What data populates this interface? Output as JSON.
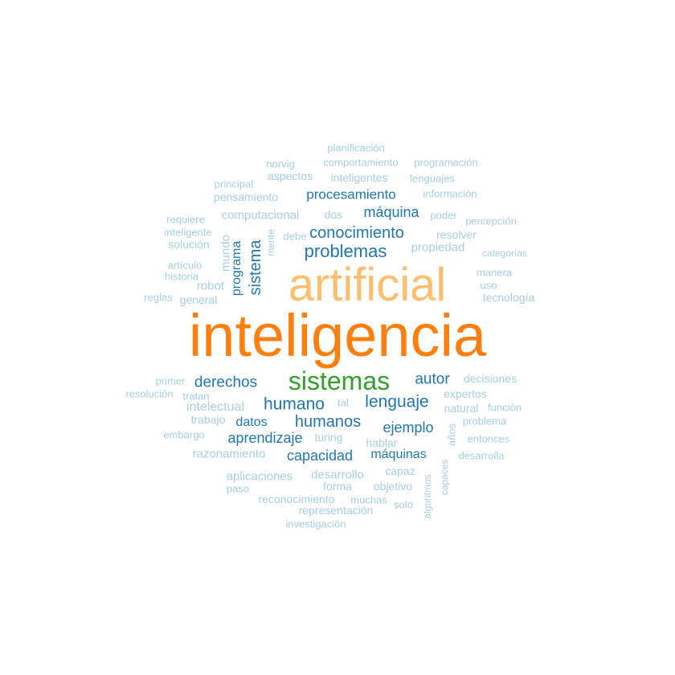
{
  "palette": {
    "dark_orange": "#ff7f0e",
    "light_orange": "#fdbf6f",
    "green": "#33a02c",
    "dark_blue": "#1f78b4",
    "light_blue": "#a6cee3"
  },
  "words": [
    {
      "text": "inteligencia",
      "color": "dark_orange"
    },
    {
      "text": "artificial",
      "color": "light_orange"
    },
    {
      "text": "sistemas",
      "color": "green"
    },
    {
      "text": "problemas",
      "color": "dark_blue"
    },
    {
      "text": "conocimiento",
      "color": "dark_blue"
    },
    {
      "text": "máquina",
      "color": "dark_blue"
    },
    {
      "text": "procesamiento",
      "color": "dark_blue"
    },
    {
      "text": "sistema",
      "color": "dark_blue"
    },
    {
      "text": "programa",
      "color": "dark_blue"
    },
    {
      "text": "derechos",
      "color": "dark_blue"
    },
    {
      "text": "autor",
      "color": "dark_blue"
    },
    {
      "text": "humano",
      "color": "dark_blue"
    },
    {
      "text": "lenguaje",
      "color": "dark_blue"
    },
    {
      "text": "humanos",
      "color": "dark_blue"
    },
    {
      "text": "datos",
      "color": "dark_blue"
    },
    {
      "text": "ejemplo",
      "color": "dark_blue"
    },
    {
      "text": "aprendizaje",
      "color": "dark_blue"
    },
    {
      "text": "capacidad",
      "color": "dark_blue"
    },
    {
      "text": "máquinas",
      "color": "dark_blue"
    },
    {
      "text": "planificación",
      "color": "light_blue"
    },
    {
      "text": "norvig",
      "color": "light_blue"
    },
    {
      "text": "comportamiento",
      "color": "light_blue"
    },
    {
      "text": "programación",
      "color": "light_blue"
    },
    {
      "text": "aspectos",
      "color": "light_blue"
    },
    {
      "text": "inteligentes",
      "color": "light_blue"
    },
    {
      "text": "lenguajes",
      "color": "light_blue"
    },
    {
      "text": "principal",
      "color": "light_blue"
    },
    {
      "text": "pensamiento",
      "color": "light_blue"
    },
    {
      "text": "información",
      "color": "light_blue"
    },
    {
      "text": "computacional",
      "color": "light_blue"
    },
    {
      "text": "dos",
      "color": "light_blue"
    },
    {
      "text": "poder",
      "color": "light_blue"
    },
    {
      "text": "percepción",
      "color": "light_blue"
    },
    {
      "text": "requiere",
      "color": "light_blue"
    },
    {
      "text": "inteligente",
      "color": "light_blue"
    },
    {
      "text": "debe",
      "color": "light_blue"
    },
    {
      "text": "resolver",
      "color": "light_blue"
    },
    {
      "text": "solución",
      "color": "light_blue"
    },
    {
      "text": "propiedad",
      "color": "light_blue"
    },
    {
      "text": "categorías",
      "color": "light_blue"
    },
    {
      "text": "mundo",
      "color": "light_blue"
    },
    {
      "text": "mente",
      "color": "light_blue"
    },
    {
      "text": "artículo",
      "color": "light_blue"
    },
    {
      "text": "manera",
      "color": "light_blue"
    },
    {
      "text": "historia",
      "color": "light_blue"
    },
    {
      "text": "robot",
      "color": "light_blue"
    },
    {
      "text": "uso",
      "color": "light_blue"
    },
    {
      "text": "reglas",
      "color": "light_blue"
    },
    {
      "text": "general",
      "color": "light_blue"
    },
    {
      "text": "tecnología",
      "color": "light_blue"
    },
    {
      "text": "primer",
      "color": "light_blue"
    },
    {
      "text": "decisiones",
      "color": "light_blue"
    },
    {
      "text": "resolución",
      "color": "light_blue"
    },
    {
      "text": "tratan",
      "color": "light_blue"
    },
    {
      "text": "expertos",
      "color": "light_blue"
    },
    {
      "text": "tal",
      "color": "light_blue"
    },
    {
      "text": "intelectual",
      "color": "light_blue"
    },
    {
      "text": "natural",
      "color": "light_blue"
    },
    {
      "text": "función",
      "color": "light_blue"
    },
    {
      "text": "trabajo",
      "color": "light_blue"
    },
    {
      "text": "problema",
      "color": "light_blue"
    },
    {
      "text": "embargo",
      "color": "light_blue"
    },
    {
      "text": "turing",
      "color": "light_blue"
    },
    {
      "text": "años",
      "color": "light_blue"
    },
    {
      "text": "entonces",
      "color": "light_blue"
    },
    {
      "text": "hablar",
      "color": "light_blue"
    },
    {
      "text": "razonamiento",
      "color": "light_blue"
    },
    {
      "text": "desarrolla",
      "color": "light_blue"
    },
    {
      "text": "capaz",
      "color": "light_blue"
    },
    {
      "text": "aplicaciones",
      "color": "light_blue"
    },
    {
      "text": "desarrollo",
      "color": "light_blue"
    },
    {
      "text": "forma",
      "color": "light_blue"
    },
    {
      "text": "objetivo",
      "color": "light_blue"
    },
    {
      "text": "paso",
      "color": "light_blue"
    },
    {
      "text": "capaces",
      "color": "light_blue"
    },
    {
      "text": "reconocimiento",
      "color": "light_blue"
    },
    {
      "text": "muchas",
      "color": "light_blue"
    },
    {
      "text": "solo",
      "color": "light_blue"
    },
    {
      "text": "algoritmos",
      "color": "light_blue"
    },
    {
      "text": "representación",
      "color": "light_blue"
    },
    {
      "text": "investigación",
      "color": "light_blue"
    }
  ]
}
